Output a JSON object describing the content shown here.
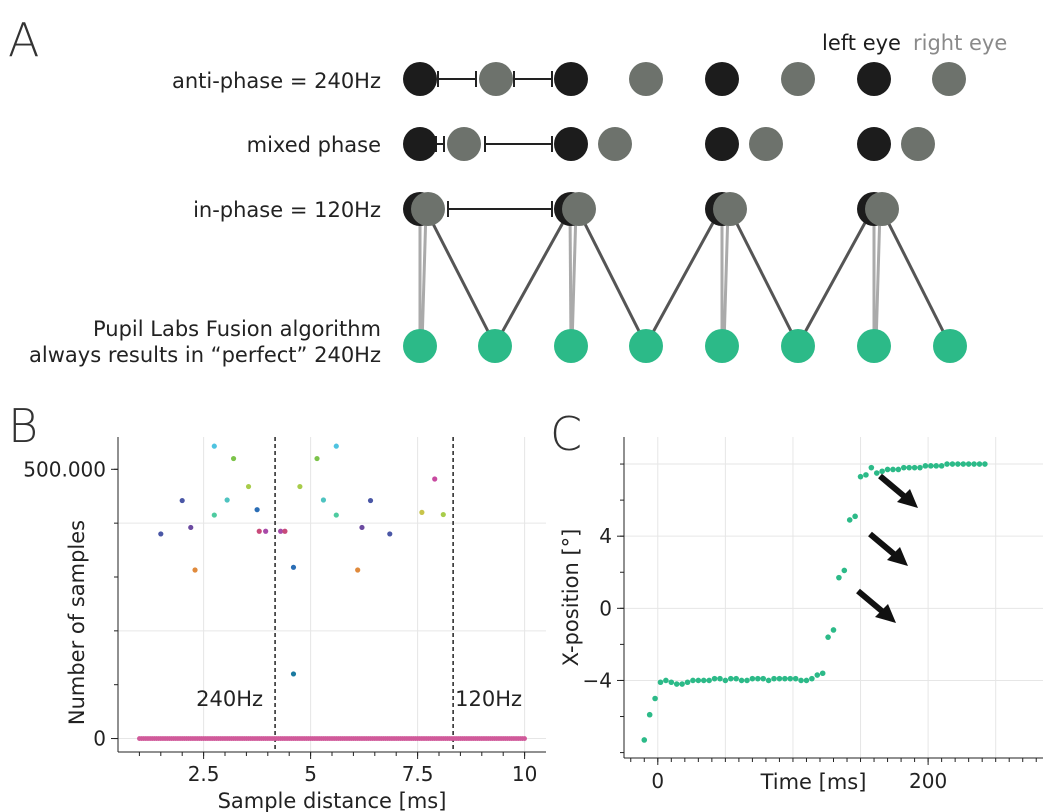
{
  "panels": {
    "a": "A",
    "b": "B",
    "c": "C"
  },
  "colors": {
    "left_eye": "#1c1c1c",
    "right_eye": "#6d726c",
    "fused": "#2cba88",
    "link_dark": "#555555",
    "link_light": "#aaaaaa"
  },
  "diagram": {
    "legend_left": "left eye",
    "legend_right": "right eye",
    "rows": [
      {
        "label": "anti-phase = 240Hz"
      },
      {
        "label": "mixed phase"
      },
      {
        "label": "in-phase = 120Hz"
      }
    ],
    "fusion_line1": "Pupil Labs Fusion algorithm",
    "fusion_line2": "always results in “perfect” 240Hz"
  },
  "chart_data": [
    {
      "panel": "B",
      "type": "scatter",
      "title": "",
      "xlabel": "Sample distance [ms]",
      "ylabel": "Number of samples",
      "xlim": [
        0.5,
        10.5
      ],
      "ylim": [
        -25000,
        560000
      ],
      "xticks": [
        2.5,
        5,
        7.5,
        10
      ],
      "xtick_labels": [
        "2.5",
        "5",
        "7.5",
        "10"
      ],
      "yticks": [
        0,
        500000
      ],
      "ytick_labels": [
        "0",
        "500.000"
      ],
      "grid": true,
      "annotations": [
        {
          "x": 4.17,
          "text": "240Hz",
          "style": "dashed-vline"
        },
        {
          "x": 8.33,
          "text": "120Hz",
          "style": "dashed-vline"
        }
      ],
      "points": [
        {
          "x": 1.5,
          "y": 380000,
          "color": "#4a57a6"
        },
        {
          "x": 2.0,
          "y": 442000,
          "color": "#4a57a6"
        },
        {
          "x": 2.2,
          "y": 392000,
          "color": "#6b4aa0"
        },
        {
          "x": 2.3,
          "y": 313000,
          "color": "#e08a3c"
        },
        {
          "x": 2.75,
          "y": 543000,
          "color": "#4ec3e0"
        },
        {
          "x": 2.75,
          "y": 415000,
          "color": "#4ecba0"
        },
        {
          "x": 3.2,
          "y": 520000,
          "color": "#7cc34a"
        },
        {
          "x": 3.05,
          "y": 443000,
          "color": "#4ec3c0"
        },
        {
          "x": 3.55,
          "y": 468000,
          "color": "#a8cc4a"
        },
        {
          "x": 3.75,
          "y": 425000,
          "color": "#2a6db5"
        },
        {
          "x": 3.8,
          "y": 385000,
          "color": "#c84a7a"
        },
        {
          "x": 3.95,
          "y": 385000,
          "color": "#a84aa8"
        },
        {
          "x": 4.3,
          "y": 385000,
          "color": "#a84aa8"
        },
        {
          "x": 4.4,
          "y": 385000,
          "color": "#c84a7a"
        },
        {
          "x": 4.75,
          "y": 468000,
          "color": "#a8cc4a"
        },
        {
          "x": 4.6,
          "y": 318000,
          "color": "#2a6db5"
        },
        {
          "x": 4.6,
          "y": 120000,
          "color": "#1a7aa0"
        },
        {
          "x": 5.15,
          "y": 520000,
          "color": "#7cc34a"
        },
        {
          "x": 5.3,
          "y": 443000,
          "color": "#4ec3c0"
        },
        {
          "x": 5.6,
          "y": 543000,
          "color": "#4ec3e0"
        },
        {
          "x": 5.6,
          "y": 415000,
          "color": "#4ecba0"
        },
        {
          "x": 6.1,
          "y": 313000,
          "color": "#e08a3c"
        },
        {
          "x": 6.2,
          "y": 392000,
          "color": "#6b4aa0"
        },
        {
          "x": 6.4,
          "y": 442000,
          "color": "#4a57a6"
        },
        {
          "x": 6.85,
          "y": 380000,
          "color": "#4a57a6"
        },
        {
          "x": 7.6,
          "y": 420000,
          "color": "#c8c44a"
        },
        {
          "x": 7.9,
          "y": 482000,
          "color": "#c84aa0"
        },
        {
          "x": 8.1,
          "y": 416000,
          "color": "#a8cc4a"
        }
      ],
      "baseline": {
        "x_start": 1.0,
        "x_end": 10.0,
        "step": 0.05,
        "y": 0,
        "color": "#d05a9a"
      }
    },
    {
      "panel": "C",
      "type": "scatter",
      "title": "",
      "xlabel": "Time [ms]",
      "ylabel": "X-position [°]",
      "xlim": [
        -25,
        285
      ],
      "ylim": [
        -8.3,
        9.5
      ],
      "xticks": [
        0,
        200
      ],
      "xtick_labels": [
        "0",
        "200"
      ],
      "xgrid": [
        0,
        50,
        100,
        150,
        200,
        250
      ],
      "yticks": [
        -4,
        0,
        4
      ],
      "ytick_labels": [
        "−4",
        "0",
        "4"
      ],
      "ygrid": [
        -4,
        0,
        4,
        8
      ],
      "grid": true,
      "color": "#2cba88",
      "x": [
        -10,
        -6,
        -2,
        2,
        6,
        10,
        14,
        18,
        22,
        26,
        30,
        34,
        38,
        42,
        46,
        50,
        54,
        58,
        62,
        66,
        70,
        74,
        78,
        82,
        86,
        90,
        94,
        98,
        102,
        106,
        110,
        114,
        118,
        122,
        126,
        130,
        134,
        138,
        142,
        146,
        150,
        154,
        158,
        162,
        166,
        170,
        174,
        178,
        182,
        186,
        190,
        194,
        198,
        202,
        206,
        210,
        214,
        218,
        222,
        226,
        230,
        234,
        238,
        242
      ],
      "y": [
        -7.3,
        -5.9,
        -5.0,
        -4.1,
        -4.0,
        -4.1,
        -4.2,
        -4.2,
        -4.1,
        -4.0,
        -4.0,
        -4.0,
        -4.0,
        -3.9,
        -3.9,
        -4.0,
        -3.9,
        -3.9,
        -4.0,
        -4.0,
        -3.9,
        -3.9,
        -3.9,
        -4.0,
        -3.9,
        -3.9,
        -3.9,
        -3.9,
        -3.9,
        -4.0,
        -4.0,
        -3.9,
        -3.7,
        -3.6,
        -1.6,
        -1.2,
        1.7,
        2.1,
        4.9,
        5.1,
        7.3,
        7.4,
        7.8,
        7.5,
        7.6,
        7.7,
        7.7,
        7.7,
        7.8,
        7.8,
        7.8,
        7.8,
        7.9,
        7.9,
        7.9,
        7.9,
        8.0,
        8.0,
        8.0,
        8.0,
        8.0,
        8.0,
        8.0,
        8.0
      ]
    }
  ]
}
